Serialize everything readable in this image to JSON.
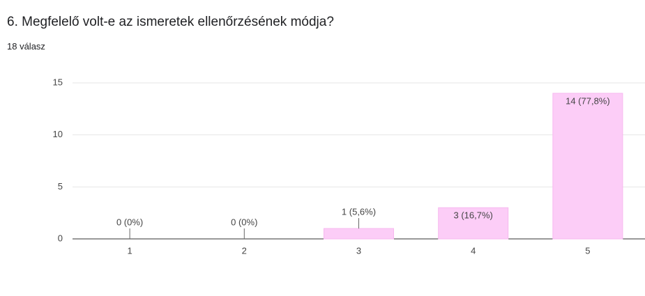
{
  "chart_data": {
    "type": "bar",
    "title": "6. Megfelelő volt-e az ismeretek ellenőrzésének módja?",
    "subtitle": "18 válasz",
    "categories": [
      "1",
      "2",
      "3",
      "4",
      "5"
    ],
    "values": [
      0,
      0,
      1,
      3,
      14
    ],
    "value_labels": [
      "0 (0%)",
      "0 (0%)",
      "1 (5,6%)",
      "3 (16,7%)",
      "14 (77,8%)"
    ],
    "color": "#fccdf7",
    "ylim": [
      0,
      15
    ],
    "yticks": [
      0,
      5,
      10,
      15
    ],
    "grid": true
  }
}
